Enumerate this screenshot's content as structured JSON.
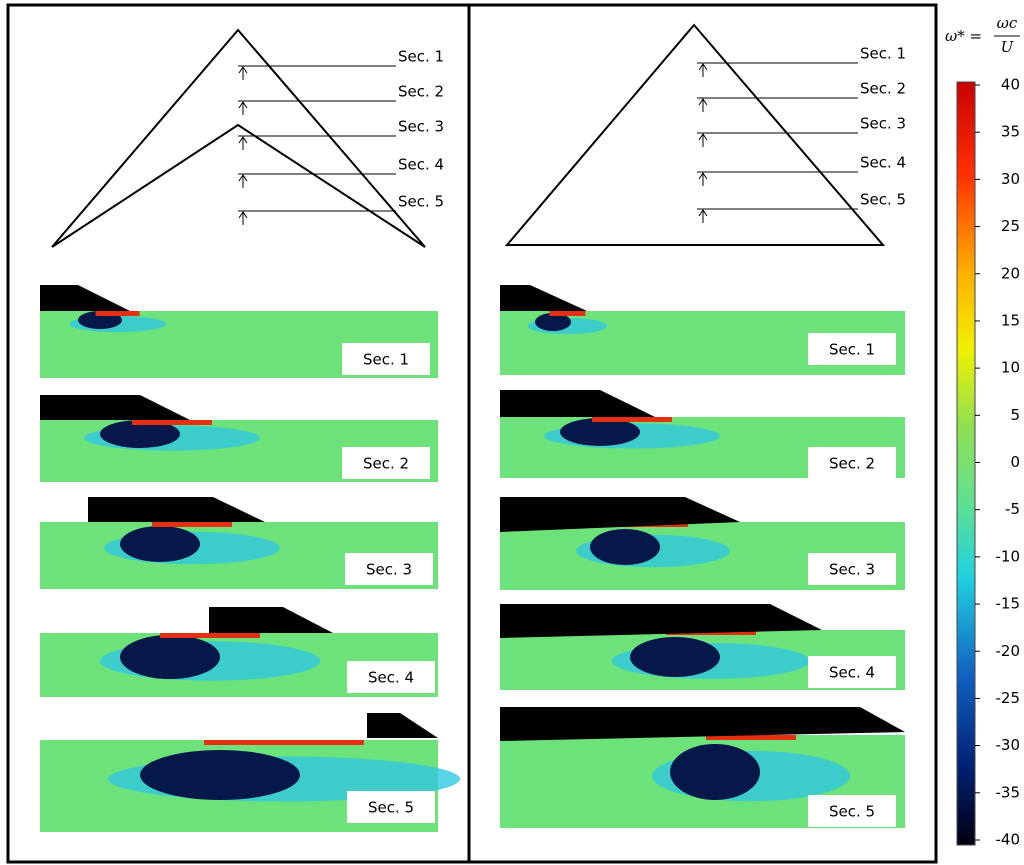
{
  "left": {
    "diagram_labels": [
      "Sec. 1",
      "Sec. 2",
      "Sec. 3",
      "Sec. 4",
      "Sec. 5"
    ],
    "panel_labels": [
      "Sec. 1",
      "Sec. 2",
      "Sec. 3",
      "Sec. 4",
      "Sec. 5"
    ]
  },
  "right": {
    "diagram_labels": [
      "Sec. 1",
      "Sec. 2",
      "Sec. 3",
      "Sec. 4",
      "Sec. 5"
    ],
    "panel_labels": [
      "Sec. 1",
      "Sec. 2",
      "Sec. 3",
      "Sec. 4",
      "Sec. 5"
    ]
  },
  "colorbar": {
    "label_lhs": "ω* =",
    "label_numerator": "ωc",
    "label_denominator": "U",
    "range": [
      -40,
      40
    ],
    "ticks": [
      40,
      35,
      30,
      25,
      20,
      15,
      10,
      5,
      0,
      -5,
      -10,
      -15,
      -20,
      -25,
      -30,
      -35,
      -40
    ]
  }
}
